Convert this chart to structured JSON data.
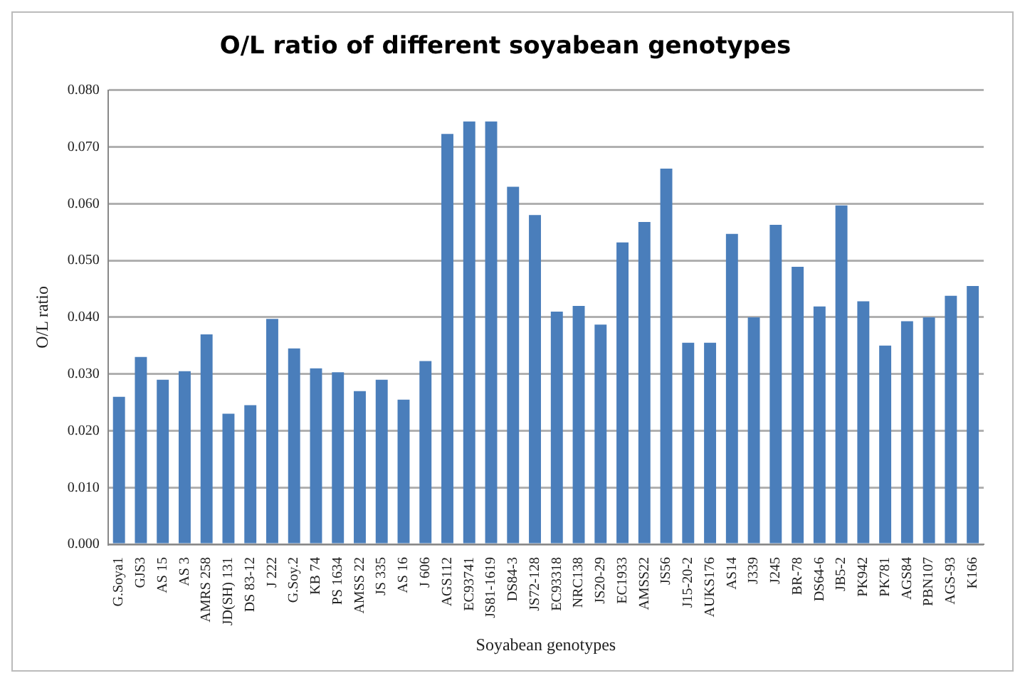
{
  "chart_data": {
    "type": "bar",
    "title": "O/L ratio of different soyabean genotypes",
    "xlabel": "Soyabean genotypes",
    "ylabel": "O/L ratio",
    "categories": [
      "G.Soya1",
      "GJS3",
      "AS 15",
      "AS 3",
      "AMRS 258",
      "JD(SH) 131",
      "DS 83-12",
      "J 222",
      "G.Soy.2",
      "KB 74",
      "PS 1634",
      "AMSS 22",
      "JS 335",
      "AS 16",
      "J 606",
      "AGS112",
      "EC93741",
      "JS81-1619",
      "DS84-3",
      "JS72-128",
      "EC93318",
      "NRC138",
      "JS20-29",
      "EC1933",
      "AMSS22",
      "JS56",
      "J15-20-2",
      "AUKS176",
      "AS14",
      "J339",
      "J245",
      "BR-78",
      "DS64-6",
      "JB5-2",
      "PK942",
      "PK781",
      "AGS84",
      "PBN107",
      "AGS-93",
      "K166"
    ],
    "values": [
      0.026,
      0.033,
      0.029,
      0.0305,
      0.037,
      0.023,
      0.0245,
      0.0397,
      0.0345,
      0.031,
      0.0303,
      0.027,
      0.029,
      0.0255,
      0.0323,
      0.0723,
      0.0745,
      0.0745,
      0.063,
      0.058,
      0.041,
      0.042,
      0.0387,
      0.0532,
      0.0568,
      0.0662,
      0.0355,
      0.0355,
      0.0547,
      0.04,
      0.0563,
      0.0489,
      0.0419,
      0.0597,
      0.0428,
      0.035,
      0.0393,
      0.04,
      0.0438,
      0.0455
    ],
    "color": "#4a7ebb",
    "ylim": [
      0,
      0.08
    ],
    "yticks": [
      {
        "value": 0,
        "label": "0.000"
      },
      {
        "value": 0.01,
        "label": "0.010"
      },
      {
        "value": 0.02,
        "label": "0.020"
      },
      {
        "value": 0.03,
        "label": "0.030"
      },
      {
        "value": 0.04,
        "label": "0.040"
      },
      {
        "value": 0.05,
        "label": "0.050"
      },
      {
        "value": 0.06,
        "label": "0.060"
      },
      {
        "value": 0.07,
        "label": "0.070"
      },
      {
        "value": 0.08,
        "label": "0.080"
      }
    ],
    "grid": "y",
    "legend": false
  }
}
